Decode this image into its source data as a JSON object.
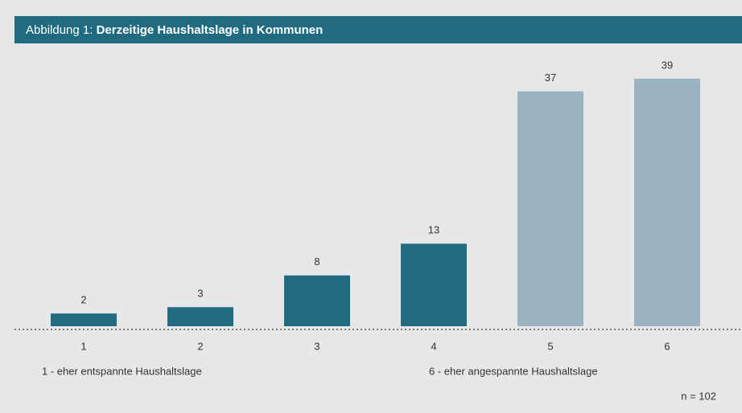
{
  "chart_data": {
    "type": "bar",
    "title": {
      "label": "Abbildung 1:",
      "text": "Derzeitige Haushaltslage in Kommunen"
    },
    "categories": [
      "1",
      "2",
      "3",
      "4",
      "5",
      "6"
    ],
    "values": [
      2,
      3,
      8,
      13,
      37,
      39
    ],
    "colors": [
      "#216b80",
      "#216b80",
      "#216b80",
      "#216b80",
      "#9bb3c0",
      "#9bb3c0"
    ],
    "ylim": [
      0,
      40
    ],
    "annotations": [
      "1 - eher entspannte Haushaltslage",
      "6 - eher angespannte Haushaltslage",
      "n = 102"
    ]
  }
}
